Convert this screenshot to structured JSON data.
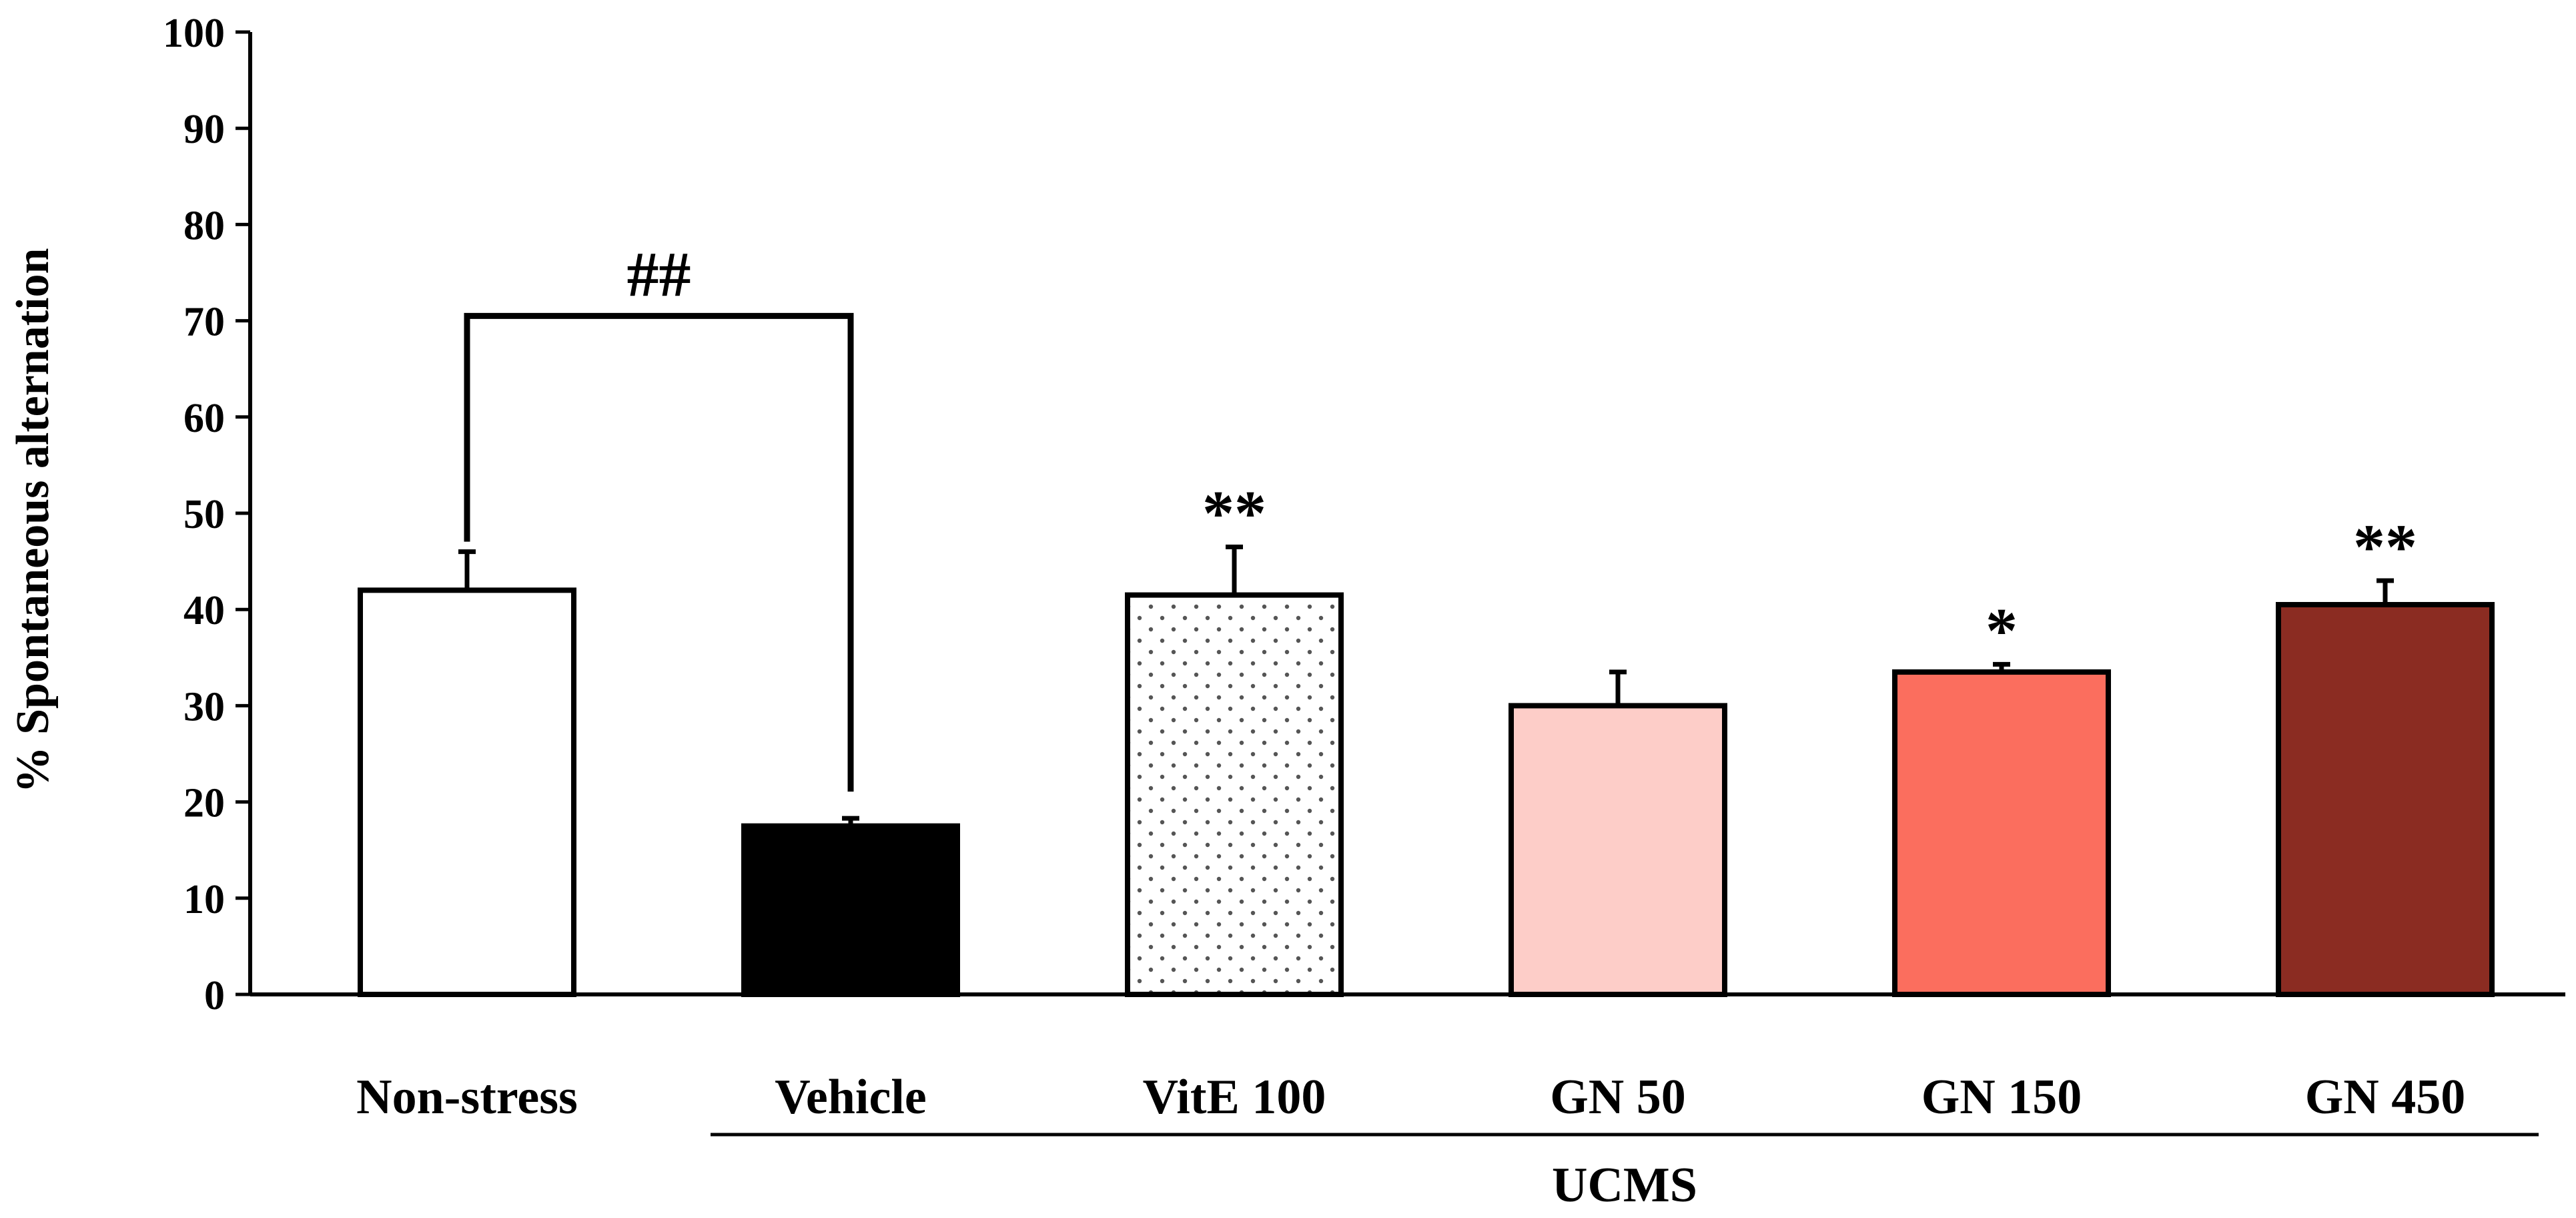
{
  "chart_data": {
    "type": "bar",
    "title": "",
    "xlabel": "",
    "ylabel": "% Spontaneous alternation",
    "ylim": [
      0,
      100
    ],
    "yticks": [
      0,
      10,
      20,
      30,
      40,
      50,
      60,
      70,
      80,
      90,
      100
    ],
    "categories": [
      "Non-stress",
      "Vehicle",
      "VitE 100",
      "GN 50",
      "GN 150",
      "GN 450"
    ],
    "values": [
      42,
      17.5,
      41.5,
      30,
      33.5,
      40.5
    ],
    "errors": [
      4,
      0.8,
      5,
      3.5,
      0.8,
      2.5
    ],
    "colors": [
      "#ffffff",
      "#000000",
      "#ffffff",
      "#fdcdc8",
      "#fb6e5e",
      "#8b2c22"
    ],
    "patterns": [
      "none",
      "none",
      "dots",
      "none",
      "none",
      "none"
    ],
    "significance": [
      "",
      "",
      "**",
      "",
      "*",
      "**"
    ],
    "comparison": {
      "from": "Non-stress",
      "to": "Vehicle",
      "label": "##",
      "y": 70.5
    },
    "group": {
      "label": "UCMS",
      "from": "Vehicle",
      "to": "GN 450"
    }
  }
}
